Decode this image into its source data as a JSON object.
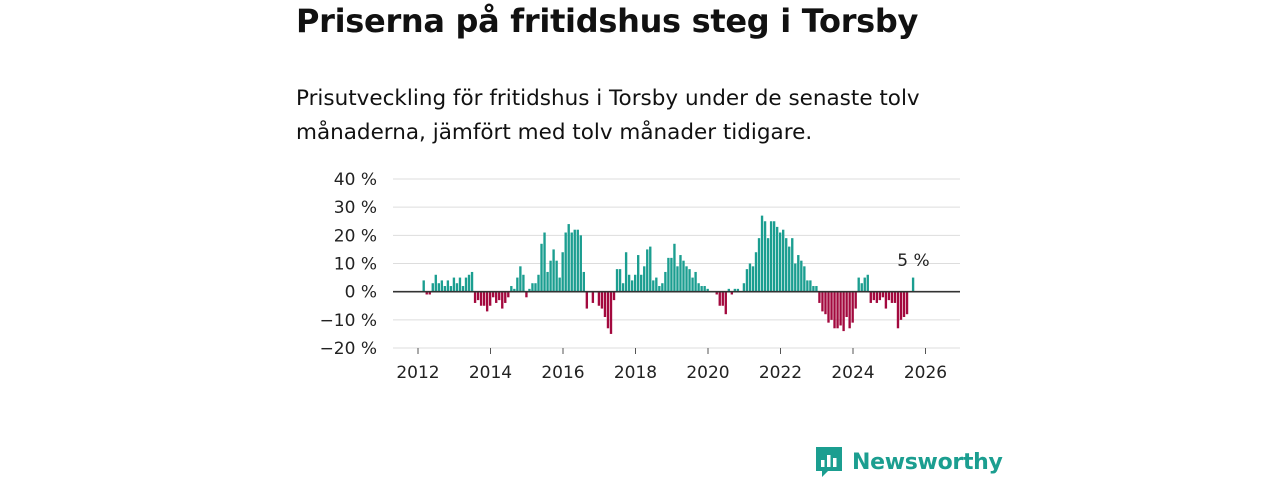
{
  "title": "Priserna på fritidshus steg i Torsby",
  "subtitle": "Prisutveckling för fritidshus i Torsby under de senaste tolv månaderna, jämfört med tolv månader tidigare.",
  "brand": "Newsworthy",
  "colors": {
    "positive": "#1b9e90",
    "negative": "#a3093e",
    "zero_line": "#333333",
    "grid": "#dddddd",
    "brand": "#1b9e90"
  },
  "chart_data": {
    "type": "bar",
    "title": "Priserna på fritidshus steg i Torsby",
    "xlabel": "",
    "ylabel": "",
    "ylim": [
      -20,
      40
    ],
    "xlim": [
      2011.0,
      2026.75
    ],
    "y_ticks": [
      40,
      30,
      20,
      10,
      0,
      -10,
      -20
    ],
    "y_tick_labels": [
      "40 %",
      "30 %",
      "20 %",
      "10 %",
      "0 %",
      "−10 %",
      "−20 %"
    ],
    "x_ticks": [
      2012,
      2014,
      2016,
      2018,
      2020,
      2022,
      2024,
      2026
    ],
    "x_tick_labels": [
      "2012",
      "2014",
      "2016",
      "2018",
      "2020",
      "2022",
      "2024",
      "2026"
    ],
    "start_year": 2012,
    "start_month": 1,
    "last_value_label": "5 %",
    "values": [
      0,
      0,
      4,
      -1,
      -1,
      3,
      6,
      3,
      4,
      2,
      4,
      2,
      5,
      3,
      5,
      2,
      5,
      6,
      7,
      -4,
      -3,
      -5,
      -5,
      -7,
      -5,
      -2,
      -4,
      -3,
      -6,
      -4,
      -2,
      2,
      1,
      5,
      9,
      6,
      -2,
      1,
      3,
      3,
      6,
      17,
      21,
      7,
      11,
      15,
      11,
      5,
      14,
      21,
      24,
      21,
      22,
      22,
      20,
      7,
      -6,
      0,
      -4,
      0,
      -5,
      -6,
      -9,
      -13,
      -15,
      -3,
      8,
      8,
      3,
      14,
      6,
      4,
      6,
      13,
      6,
      9,
      15,
      16,
      4,
      5,
      2,
      3,
      7,
      12,
      12,
      17,
      9,
      13,
      11,
      9,
      8,
      5,
      7,
      3,
      2,
      2,
      1,
      0,
      0,
      -1,
      -5,
      -5,
      -8,
      1,
      -1,
      1,
      1,
      0,
      3,
      8,
      10,
      9,
      14,
      19,
      27,
      25,
      19,
      25,
      25,
      23,
      21,
      22,
      19,
      16,
      19,
      10,
      13,
      11,
      9,
      4,
      4,
      2,
      2,
      -4,
      -7,
      -8,
      -11,
      -10,
      -13,
      -13,
      -12,
      -14,
      -9,
      -13,
      -11,
      -6,
      5,
      3,
      5,
      6,
      -4,
      -3,
      -4,
      -3,
      -2,
      -6,
      -3,
      -4,
      -4,
      -13,
      -10,
      -9,
      -8,
      0,
      5
    ]
  }
}
